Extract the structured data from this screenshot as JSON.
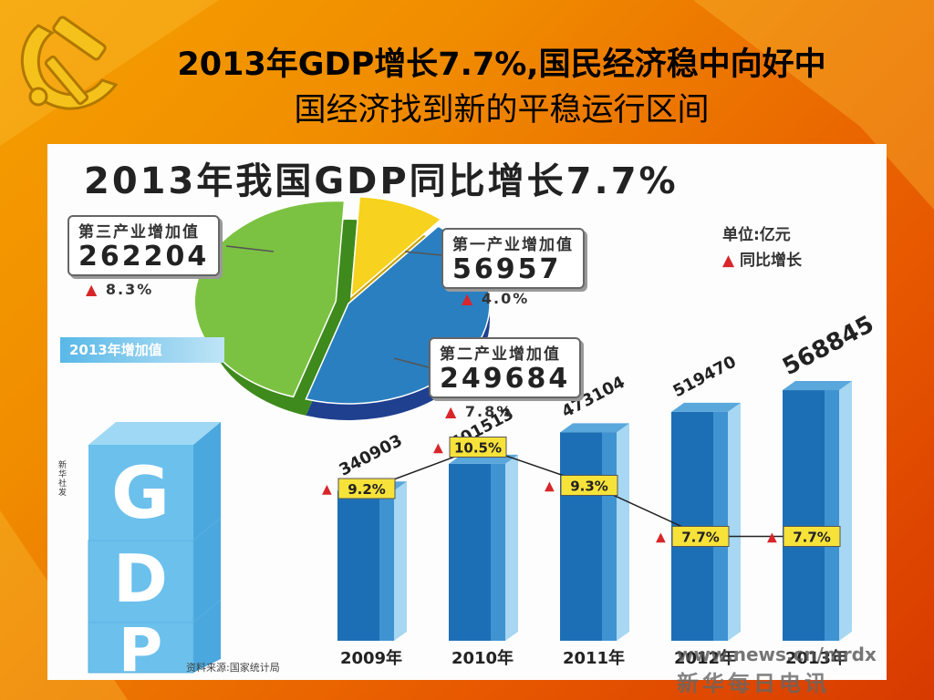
{
  "slide": {
    "title_line1": "2013年GDP增长7.7%,国民经济稳中向好中",
    "title_line2": "国经济找到新的平稳运行区间"
  },
  "infographic": {
    "heading": "2013年我国GDP同比增长7.7%",
    "unit_label": "单位:亿元",
    "growth_legend": "同比增长",
    "pie_section_label": "2013年增加值",
    "cube_letters": [
      "G",
      "D",
      "P"
    ],
    "source": "资料来源:国家统计局",
    "side_note": "新华社发",
    "watermark_url": "www.news.cn/mrdx",
    "watermark_brand": "新华每日电讯"
  },
  "colors": {
    "tertiary": "#7cc242",
    "primary": "#f7d21e",
    "secondary": "#2a7fc0",
    "bar": "#1d6fb5",
    "growth_box": "#f7e23a",
    "triangle": "#d8262a"
  },
  "chart_data": [
    {
      "type": "pie",
      "title": "2013年增加值",
      "unit": "亿元",
      "slices": [
        {
          "name": "第三产业增加值",
          "value": 262204,
          "growth": "8.3%"
        },
        {
          "name": "第一产业增加值",
          "value": 56957,
          "growth": "4.0%"
        },
        {
          "name": "第二产业增加值",
          "value": 249684,
          "growth": "7.8%"
        }
      ]
    },
    {
      "type": "bar",
      "categories": [
        "2009年",
        "2010年",
        "2011年",
        "2012年",
        "2013年"
      ],
      "values": [
        340903,
        401513,
        473104,
        519470,
        568845
      ],
      "growth": [
        9.2,
        10.5,
        9.3,
        7.7,
        7.7
      ],
      "growth_labels": [
        "9.2%",
        "10.5%",
        "9.3%",
        "7.7%",
        "7.7%"
      ],
      "unit": "亿元"
    }
  ]
}
